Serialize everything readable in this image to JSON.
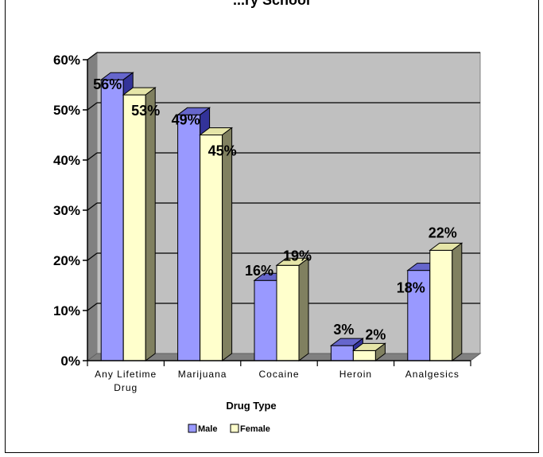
{
  "chart_data": {
    "type": "bar",
    "title": "...ry School",
    "xlabel": "Drug Type",
    "ylabel": "",
    "ylim": [
      0,
      60
    ],
    "yticks": [
      "0%",
      "10%",
      "20%",
      "30%",
      "40%",
      "50%",
      "60%"
    ],
    "categories": [
      [
        "Any Lifetime",
        "Drug"
      ],
      [
        "Marijuana"
      ],
      [
        "Cocaine"
      ],
      [
        "Heroin"
      ],
      [
        "Analgesics"
      ]
    ],
    "series": [
      {
        "name": "Male",
        "values": [
          56,
          49,
          16,
          3,
          18
        ],
        "labels": [
          "56%",
          "49%",
          "16%",
          "3%",
          "18%"
        ]
      },
      {
        "name": "Female",
        "values": [
          53,
          45,
          19,
          2,
          22
        ],
        "labels": [
          "53%",
          "45%",
          "19%",
          "2%",
          "22%"
        ]
      }
    ],
    "grid": true,
    "legend": "bottom",
    "three_d": true,
    "colors": {
      "male_front": "#9999FF",
      "male_top": "#6666CC",
      "male_side": "#333399",
      "female_front": "#FFFFCC",
      "female_top": "#E5E5A8",
      "female_side": "#808060",
      "wall": "#C0C0C0",
      "floor": "#808080"
    }
  }
}
